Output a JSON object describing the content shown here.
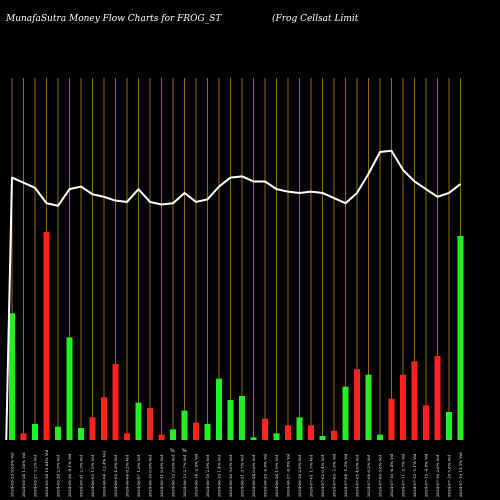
{
  "header": {
    "left_title": "MunafaSutra  Money Flow  Charts for FROG_ST",
    "right_title": "(Frog Cellsat Limit"
  },
  "colors": {
    "background": "#000000",
    "grid": "#b8860b",
    "line": "#ffffff",
    "up": "#22ee22",
    "down": "#ff2222",
    "text": "#ffffff"
  },
  "mid_labels": [
    "%",
    "%"
  ],
  "chart_data": {
    "type": "bar",
    "title": "MunafaSutra  Money Flow  Charts for FROG_ST",
    "subtitle": "(Frog Cellsat Limit",
    "categories": [
      "2024-05-23 9.63% Vol",
      "2024-05-24 1.50% Vol",
      "2024-05-27 3.2% Vol",
      "2024-05-28 15.84% Vol",
      "2024-05-29 2.5% Vol",
      "2024-05-30 -9.1% Vol",
      "2024-05-31 2.3% Vol",
      "2024-06-03 1.5% Vol",
      "2024-06-04 -12.4% Vol",
      "2024-06-05 4.9% Vol",
      "2024-06-06 6.2% Vol",
      "2024-06-07 1.3% Vol",
      "2024-06-10 0.9% Vol",
      "2024-06-11 0.8% Vol",
      "2024-06-12 3.0% Vol",
      "2024-06-13 2.7% Vol",
      "2024-06-14 -2.9% Vol",
      "2024-06-18 2.5% Vol",
      "2024-06-19 1.4% Vol",
      "2024-06-20 5.6% Vol",
      "2024-06-21 3.7% Vol",
      "2024-06-24 0.8% Vol",
      "2024-06-25 -0.6% Vol",
      "2024-06-26 1.9% Vol",
      "2024-06-27 -0.8% Vol",
      "2024-06-28 2.8% Vol",
      "2024-07-01 1.7% Vol",
      "2024-07-02 0.4% Vol",
      "2024-07-03 -1.0% Vol",
      "2024-07-04 -1.3% Vol",
      "2024-07-05 4.0% Vol",
      "2024-07-08 6.2% Vol",
      "2024-07-09 5.6% Vol",
      "2024-07-10 -0.4% Vol",
      "2024-07-11 -2.7% Vol",
      "2024-07-12 -1.1% Vol",
      "2024-07-15 -4.8% Vol",
      "2024-07-16 2.6% Vol",
      "2024-07-18 5.8% Vol",
      "2024-07-19 15.1% Vol"
    ],
    "bar_values": [
      9.5,
      0.5,
      1.2,
      15.6,
      1.0,
      7.7,
      0.9,
      1.7,
      3.2,
      5.7,
      0.5,
      2.8,
      2.4,
      0.4,
      0.8,
      2.2,
      1.3,
      1.2,
      4.6,
      3.0,
      3.3,
      0.2,
      1.6,
      0.5,
      1.1,
      1.7,
      1.1,
      0.3,
      0.7,
      4.0,
      5.3,
      4.9,
      0.4,
      3.1,
      4.9,
      5.9,
      2.6,
      6.3,
      2.1,
      15.3
    ],
    "bar_direction": [
      "up",
      "down",
      "up",
      "down",
      "up",
      "up",
      "up",
      "down",
      "down",
      "down",
      "down",
      "up",
      "down",
      "down",
      "up",
      "up",
      "down",
      "up",
      "up",
      "up",
      "up",
      "up",
      "down",
      "up",
      "down",
      "up",
      "down",
      "up",
      "down",
      "up",
      "down",
      "up",
      "up",
      "down",
      "down",
      "down",
      "down",
      "down",
      "up",
      "up"
    ],
    "line_values": [
      5,
      25.5,
      25.1,
      24.7,
      23.5,
      23.3,
      24.6,
      24.8,
      24.2,
      24.0,
      23.7,
      23.6,
      24.6,
      23.6,
      23.4,
      23.5,
      24.3,
      23.6,
      23.8,
      24.8,
      25.5,
      25.6,
      25.2,
      25.2,
      24.6,
      24.4,
      24.3,
      24.4,
      24.3,
      23.9,
      23.5,
      24.3,
      25.8,
      27.5,
      27.6,
      26.1,
      25.2,
      24.6,
      24.0,
      24.3,
      25.0
    ],
    "line_x_index": [
      -0.5,
      0,
      1,
      2,
      3,
      4,
      5,
      6,
      7,
      8,
      9,
      10,
      11,
      12,
      13,
      14,
      15,
      16,
      17,
      18,
      19,
      20,
      21,
      22,
      23,
      24,
      25,
      26,
      27,
      28,
      29,
      30,
      31,
      32,
      33,
      34,
      35,
      36,
      37,
      38,
      39
    ],
    "line_range": [
      5,
      30
    ],
    "bar_range": [
      0,
      24
    ],
    "grid": true,
    "legend": "none"
  }
}
